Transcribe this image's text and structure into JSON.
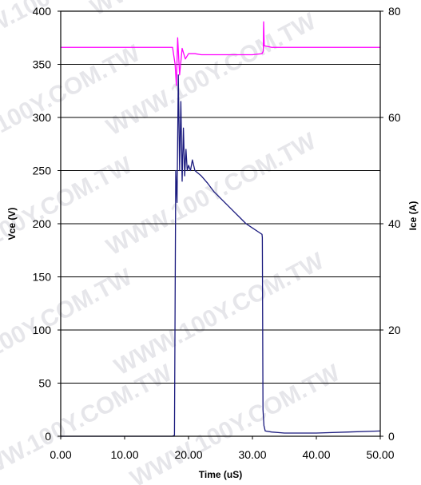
{
  "chart_data": {
    "type": "line",
    "title": "",
    "xlabel": "Time (uS)",
    "ylabel_left": "Vce (V)",
    "ylabel_right": "Ice (A)",
    "xlim": [
      0,
      50
    ],
    "ylim_left": [
      0,
      400
    ],
    "ylim_right": [
      0,
      80
    ],
    "x_ticks": [
      "0.00",
      "10.00",
      "20.00",
      "30.00",
      "40.00",
      "50.00"
    ],
    "y_left_ticks": [
      "0",
      "50",
      "100",
      "150",
      "200",
      "250",
      "300",
      "350",
      "400"
    ],
    "y_right_ticks": [
      "0",
      "20",
      "40",
      "60",
      "80"
    ],
    "grid": "horizontal",
    "legend": "none",
    "watermark": "WWW.100Y.COM.TW",
    "series": [
      {
        "axis": "right",
        "color": "#ff00ff",
        "x": [
          0,
          17.5,
          17.9,
          18.1,
          18.3,
          18.6,
          19.0,
          19.5,
          20.0,
          21.0,
          22.0,
          25.0,
          28.0,
          30.0,
          31.5,
          31.7,
          31.75,
          31.85,
          33.0,
          40.0,
          50.0
        ],
        "values": [
          73.2,
          73.2,
          70.0,
          66.0,
          75.0,
          68.0,
          73.0,
          71.0,
          72.0,
          72.0,
          71.8,
          71.8,
          71.8,
          71.8,
          72.0,
          72.5,
          78.0,
          73.5,
          73.2,
          73.2,
          73.2
        ]
      },
      {
        "axis": "left",
        "color": "#1a1a7e",
        "x": [
          0,
          17.0,
          17.5,
          17.8,
          18.0,
          18.2,
          18.4,
          18.6,
          18.8,
          19.0,
          19.2,
          19.4,
          19.6,
          19.8,
          20.0,
          20.3,
          20.6,
          21.0,
          22.0,
          23.0,
          24.0,
          25.0,
          26.0,
          27.0,
          28.0,
          29.0,
          30.0,
          31.0,
          31.5,
          31.55,
          31.65,
          31.8,
          32.0,
          33.0,
          35.0,
          40.0,
          45.0,
          50.0
        ],
        "values": [
          0,
          0,
          0,
          1,
          250,
          220,
          340,
          250,
          315,
          240,
          290,
          245,
          270,
          250,
          255,
          250,
          260,
          250,
          245,
          238,
          230,
          224,
          218,
          212,
          206,
          200,
          196,
          192,
          190,
          187,
          25,
          10,
          5,
          4,
          3,
          3,
          4,
          5
        ]
      }
    ]
  }
}
